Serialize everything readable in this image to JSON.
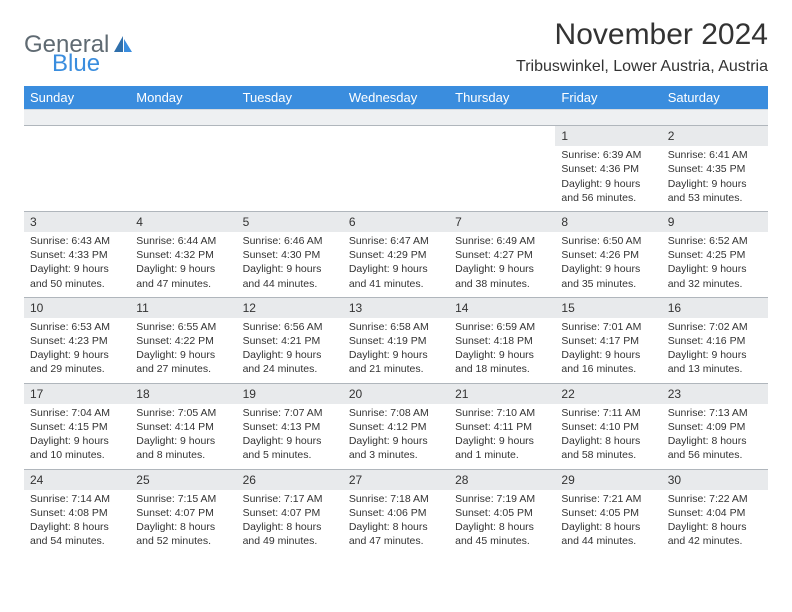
{
  "logo": {
    "general": "General",
    "blue": "Blue"
  },
  "title": "November 2024",
  "location": "Tribuswinkel, Lower Austria, Austria",
  "day_names": [
    "Sunday",
    "Monday",
    "Tuesday",
    "Wednesday",
    "Thursday",
    "Friday",
    "Saturday"
  ],
  "colors": {
    "header_bg": "#3a8dde",
    "header_text": "#ffffff",
    "daynum_bg": "#e8eaec",
    "body_text": "#333333",
    "logo_gray": "#5f6a72",
    "logo_blue": "#3a8dde",
    "border": "#b0b6bc"
  },
  "weeks": [
    [
      {
        "n": "",
        "sr": "",
        "ss": "",
        "dl1": "",
        "dl2": ""
      },
      {
        "n": "",
        "sr": "",
        "ss": "",
        "dl1": "",
        "dl2": ""
      },
      {
        "n": "",
        "sr": "",
        "ss": "",
        "dl1": "",
        "dl2": ""
      },
      {
        "n": "",
        "sr": "",
        "ss": "",
        "dl1": "",
        "dl2": ""
      },
      {
        "n": "",
        "sr": "",
        "ss": "",
        "dl1": "",
        "dl2": ""
      },
      {
        "n": "1",
        "sr": "Sunrise: 6:39 AM",
        "ss": "Sunset: 4:36 PM",
        "dl1": "Daylight: 9 hours",
        "dl2": "and 56 minutes."
      },
      {
        "n": "2",
        "sr": "Sunrise: 6:41 AM",
        "ss": "Sunset: 4:35 PM",
        "dl1": "Daylight: 9 hours",
        "dl2": "and 53 minutes."
      }
    ],
    [
      {
        "n": "3",
        "sr": "Sunrise: 6:43 AM",
        "ss": "Sunset: 4:33 PM",
        "dl1": "Daylight: 9 hours",
        "dl2": "and 50 minutes."
      },
      {
        "n": "4",
        "sr": "Sunrise: 6:44 AM",
        "ss": "Sunset: 4:32 PM",
        "dl1": "Daylight: 9 hours",
        "dl2": "and 47 minutes."
      },
      {
        "n": "5",
        "sr": "Sunrise: 6:46 AM",
        "ss": "Sunset: 4:30 PM",
        "dl1": "Daylight: 9 hours",
        "dl2": "and 44 minutes."
      },
      {
        "n": "6",
        "sr": "Sunrise: 6:47 AM",
        "ss": "Sunset: 4:29 PM",
        "dl1": "Daylight: 9 hours",
        "dl2": "and 41 minutes."
      },
      {
        "n": "7",
        "sr": "Sunrise: 6:49 AM",
        "ss": "Sunset: 4:27 PM",
        "dl1": "Daylight: 9 hours",
        "dl2": "and 38 minutes."
      },
      {
        "n": "8",
        "sr": "Sunrise: 6:50 AM",
        "ss": "Sunset: 4:26 PM",
        "dl1": "Daylight: 9 hours",
        "dl2": "and 35 minutes."
      },
      {
        "n": "9",
        "sr": "Sunrise: 6:52 AM",
        "ss": "Sunset: 4:25 PM",
        "dl1": "Daylight: 9 hours",
        "dl2": "and 32 minutes."
      }
    ],
    [
      {
        "n": "10",
        "sr": "Sunrise: 6:53 AM",
        "ss": "Sunset: 4:23 PM",
        "dl1": "Daylight: 9 hours",
        "dl2": "and 29 minutes."
      },
      {
        "n": "11",
        "sr": "Sunrise: 6:55 AM",
        "ss": "Sunset: 4:22 PM",
        "dl1": "Daylight: 9 hours",
        "dl2": "and 27 minutes."
      },
      {
        "n": "12",
        "sr": "Sunrise: 6:56 AM",
        "ss": "Sunset: 4:21 PM",
        "dl1": "Daylight: 9 hours",
        "dl2": "and 24 minutes."
      },
      {
        "n": "13",
        "sr": "Sunrise: 6:58 AM",
        "ss": "Sunset: 4:19 PM",
        "dl1": "Daylight: 9 hours",
        "dl2": "and 21 minutes."
      },
      {
        "n": "14",
        "sr": "Sunrise: 6:59 AM",
        "ss": "Sunset: 4:18 PM",
        "dl1": "Daylight: 9 hours",
        "dl2": "and 18 minutes."
      },
      {
        "n": "15",
        "sr": "Sunrise: 7:01 AM",
        "ss": "Sunset: 4:17 PM",
        "dl1": "Daylight: 9 hours",
        "dl2": "and 16 minutes."
      },
      {
        "n": "16",
        "sr": "Sunrise: 7:02 AM",
        "ss": "Sunset: 4:16 PM",
        "dl1": "Daylight: 9 hours",
        "dl2": "and 13 minutes."
      }
    ],
    [
      {
        "n": "17",
        "sr": "Sunrise: 7:04 AM",
        "ss": "Sunset: 4:15 PM",
        "dl1": "Daylight: 9 hours",
        "dl2": "and 10 minutes."
      },
      {
        "n": "18",
        "sr": "Sunrise: 7:05 AM",
        "ss": "Sunset: 4:14 PM",
        "dl1": "Daylight: 9 hours",
        "dl2": "and 8 minutes."
      },
      {
        "n": "19",
        "sr": "Sunrise: 7:07 AM",
        "ss": "Sunset: 4:13 PM",
        "dl1": "Daylight: 9 hours",
        "dl2": "and 5 minutes."
      },
      {
        "n": "20",
        "sr": "Sunrise: 7:08 AM",
        "ss": "Sunset: 4:12 PM",
        "dl1": "Daylight: 9 hours",
        "dl2": "and 3 minutes."
      },
      {
        "n": "21",
        "sr": "Sunrise: 7:10 AM",
        "ss": "Sunset: 4:11 PM",
        "dl1": "Daylight: 9 hours",
        "dl2": "and 1 minute."
      },
      {
        "n": "22",
        "sr": "Sunrise: 7:11 AM",
        "ss": "Sunset: 4:10 PM",
        "dl1": "Daylight: 8 hours",
        "dl2": "and 58 minutes."
      },
      {
        "n": "23",
        "sr": "Sunrise: 7:13 AM",
        "ss": "Sunset: 4:09 PM",
        "dl1": "Daylight: 8 hours",
        "dl2": "and 56 minutes."
      }
    ],
    [
      {
        "n": "24",
        "sr": "Sunrise: 7:14 AM",
        "ss": "Sunset: 4:08 PM",
        "dl1": "Daylight: 8 hours",
        "dl2": "and 54 minutes."
      },
      {
        "n": "25",
        "sr": "Sunrise: 7:15 AM",
        "ss": "Sunset: 4:07 PM",
        "dl1": "Daylight: 8 hours",
        "dl2": "and 52 minutes."
      },
      {
        "n": "26",
        "sr": "Sunrise: 7:17 AM",
        "ss": "Sunset: 4:07 PM",
        "dl1": "Daylight: 8 hours",
        "dl2": "and 49 minutes."
      },
      {
        "n": "27",
        "sr": "Sunrise: 7:18 AM",
        "ss": "Sunset: 4:06 PM",
        "dl1": "Daylight: 8 hours",
        "dl2": "and 47 minutes."
      },
      {
        "n": "28",
        "sr": "Sunrise: 7:19 AM",
        "ss": "Sunset: 4:05 PM",
        "dl1": "Daylight: 8 hours",
        "dl2": "and 45 minutes."
      },
      {
        "n": "29",
        "sr": "Sunrise: 7:21 AM",
        "ss": "Sunset: 4:05 PM",
        "dl1": "Daylight: 8 hours",
        "dl2": "and 44 minutes."
      },
      {
        "n": "30",
        "sr": "Sunrise: 7:22 AM",
        "ss": "Sunset: 4:04 PM",
        "dl1": "Daylight: 8 hours",
        "dl2": "and 42 minutes."
      }
    ]
  ]
}
